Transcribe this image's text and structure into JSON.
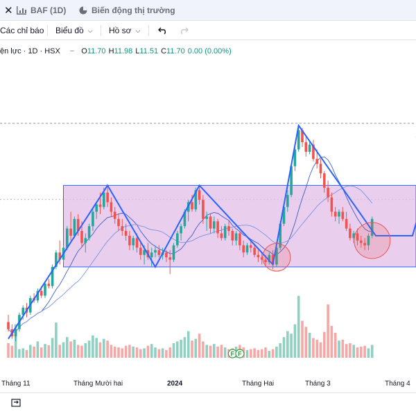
{
  "tabs": {
    "close_glyph": "✕",
    "tab1_label": "BAF (1D)",
    "tab2_label": "Biến động thị trường"
  },
  "toolbar": {
    "indicators_label": "Các chỉ báo",
    "charts_label": "Biểu đồ",
    "profile_label": "Hồ sơ"
  },
  "legend": {
    "symbol": "ện lực · 1D · HSX",
    "open_key": "O",
    "open_value": "11.70",
    "high_key": "H",
    "high_value": "11.98",
    "low_key": "L",
    "low_value": "11.51",
    "close_key": "C",
    "close_value": "11.70",
    "change": "0.00 (0.00%)"
  },
  "xaxis": {
    "labels": [
      "Tháng 11",
      "Tháng Mười hai",
      "2024",
      "Tháng Hai",
      "Tháng 3",
      "Tháng 4"
    ]
  },
  "markers": {
    "f_label": "F"
  },
  "colors": {
    "up": "#26a69a",
    "down": "#ef5350",
    "zigzag": "#2962ff",
    "box_fill": "#e1bee7",
    "box_border": "#2962ff",
    "ma_line": "#5b7bd5"
  },
  "chart_data": {
    "type": "candlestick",
    "x_labels": [
      "Tháng 11",
      "Tháng Mười hai",
      "2024",
      "Tháng Hai",
      "Tháng 3",
      "Tháng 4"
    ],
    "last_ohlc": {
      "open": 11.7,
      "high": 11.98,
      "low": 11.51,
      "close": 11.7,
      "change": 0.0,
      "change_pct": 0.0
    },
    "zigzag": [
      {
        "t": 0,
        "p": 4.5
      },
      {
        "t": 27,
        "p": 10.9
      },
      {
        "t": 40,
        "p": 7.5
      },
      {
        "t": 52,
        "p": 10.9
      },
      {
        "t": 72,
        "p": 7.6
      },
      {
        "t": 79,
        "p": 13.4
      },
      {
        "t": 100,
        "p": 8.8
      },
      {
        "t": 110,
        "p": 8.8
      },
      {
        "t": 118,
        "p": 13.2
      }
    ],
    "range_box": {
      "t_start": 15,
      "t_end": 118,
      "p_low": 7.5,
      "p_high": 10.9
    },
    "candles": [
      {
        "o": 5.2,
        "h": 5.5,
        "l": 4.8,
        "c": 4.9
      },
      {
        "o": 4.9,
        "h": 5.1,
        "l": 4.5,
        "c": 4.6
      },
      {
        "o": 4.6,
        "h": 5.0,
        "l": 4.4,
        "c": 4.9
      },
      {
        "o": 4.9,
        "h": 5.6,
        "l": 4.8,
        "c": 5.5
      },
      {
        "o": 5.5,
        "h": 5.9,
        "l": 5.3,
        "c": 5.8
      },
      {
        "o": 5.8,
        "h": 6.0,
        "l": 5.4,
        "c": 5.6
      },
      {
        "o": 5.6,
        "h": 6.3,
        "l": 5.5,
        "c": 6.2
      },
      {
        "o": 6.2,
        "h": 6.4,
        "l": 6.0,
        "c": 6.1
      },
      {
        "o": 6.1,
        "h": 6.6,
        "l": 6.0,
        "c": 6.5
      },
      {
        "o": 6.5,
        "h": 6.7,
        "l": 6.2,
        "c": 6.3
      },
      {
        "o": 6.3,
        "h": 6.9,
        "l": 6.2,
        "c": 6.8
      },
      {
        "o": 6.8,
        "h": 7.0,
        "l": 6.6,
        "c": 6.7
      },
      {
        "o": 6.7,
        "h": 7.6,
        "l": 6.6,
        "c": 7.5
      },
      {
        "o": 7.5,
        "h": 8.2,
        "l": 7.4,
        "c": 8.1
      },
      {
        "o": 8.1,
        "h": 8.6,
        "l": 7.6,
        "c": 7.8
      },
      {
        "o": 7.8,
        "h": 8.4,
        "l": 7.7,
        "c": 8.3
      },
      {
        "o": 8.3,
        "h": 9.2,
        "l": 8.2,
        "c": 9.1
      },
      {
        "o": 9.1,
        "h": 9.8,
        "l": 8.6,
        "c": 8.8
      },
      {
        "o": 8.8,
        "h": 9.6,
        "l": 8.7,
        "c": 9.5
      },
      {
        "o": 9.5,
        "h": 9.7,
        "l": 8.8,
        "c": 9.0
      },
      {
        "o": 9.0,
        "h": 9.4,
        "l": 8.3,
        "c": 8.5
      },
      {
        "o": 8.5,
        "h": 8.9,
        "l": 8.1,
        "c": 8.7
      },
      {
        "o": 8.7,
        "h": 9.3,
        "l": 8.6,
        "c": 9.2
      },
      {
        "o": 9.2,
        "h": 9.9,
        "l": 9.0,
        "c": 9.8
      },
      {
        "o": 9.8,
        "h": 10.2,
        "l": 9.5,
        "c": 10.1
      },
      {
        "o": 10.1,
        "h": 10.6,
        "l": 9.7,
        "c": 10.0
      },
      {
        "o": 10.0,
        "h": 10.8,
        "l": 9.9,
        "c": 10.6
      },
      {
        "o": 10.6,
        "h": 10.9,
        "l": 10.0,
        "c": 10.2
      },
      {
        "o": 10.2,
        "h": 10.4,
        "l": 9.6,
        "c": 9.8
      },
      {
        "o": 9.8,
        "h": 10.0,
        "l": 9.3,
        "c": 9.5
      },
      {
        "o": 9.5,
        "h": 9.7,
        "l": 9.0,
        "c": 9.2
      },
      {
        "o": 9.2,
        "h": 9.5,
        "l": 8.8,
        "c": 9.0
      },
      {
        "o": 9.0,
        "h": 9.3,
        "l": 8.6,
        "c": 8.8
      },
      {
        "o": 8.8,
        "h": 9.0,
        "l": 8.2,
        "c": 8.4
      },
      {
        "o": 8.4,
        "h": 8.8,
        "l": 8.2,
        "c": 8.7
      },
      {
        "o": 8.7,
        "h": 8.9,
        "l": 8.1,
        "c": 8.3
      },
      {
        "o": 8.3,
        "h": 8.5,
        "l": 7.8,
        "c": 8.0
      },
      {
        "o": 8.0,
        "h": 8.4,
        "l": 7.6,
        "c": 8.2
      },
      {
        "o": 8.2,
        "h": 8.5,
        "l": 7.8,
        "c": 7.9
      },
      {
        "o": 7.9,
        "h": 8.3,
        "l": 7.5,
        "c": 8.1
      },
      {
        "o": 8.1,
        "h": 8.4,
        "l": 7.9,
        "c": 8.2
      },
      {
        "o": 8.2,
        "h": 8.4,
        "l": 7.9,
        "c": 8.0
      },
      {
        "o": 8.0,
        "h": 8.3,
        "l": 7.8,
        "c": 8.1
      },
      {
        "o": 8.1,
        "h": 8.2,
        "l": 7.7,
        "c": 7.9
      },
      {
        "o": 7.9,
        "h": 8.2,
        "l": 7.2,
        "c": 7.8
      },
      {
        "o": 7.8,
        "h": 8.5,
        "l": 7.7,
        "c": 8.4
      },
      {
        "o": 8.4,
        "h": 9.0,
        "l": 8.3,
        "c": 8.9
      },
      {
        "o": 8.9,
        "h": 9.3,
        "l": 8.6,
        "c": 9.2
      },
      {
        "o": 9.2,
        "h": 9.9,
        "l": 9.1,
        "c": 9.8
      },
      {
        "o": 9.8,
        "h": 10.3,
        "l": 9.4,
        "c": 10.2
      },
      {
        "o": 10.2,
        "h": 10.5,
        "l": 9.8,
        "c": 9.9
      },
      {
        "o": 9.9,
        "h": 10.8,
        "l": 9.8,
        "c": 10.7
      },
      {
        "o": 10.7,
        "h": 10.9,
        "l": 10.1,
        "c": 10.3
      },
      {
        "o": 10.3,
        "h": 10.5,
        "l": 9.3,
        "c": 9.5
      },
      {
        "o": 9.5,
        "h": 9.8,
        "l": 9.0,
        "c": 9.6
      },
      {
        "o": 9.6,
        "h": 9.7,
        "l": 8.9,
        "c": 9.1
      },
      {
        "o": 9.1,
        "h": 9.6,
        "l": 8.9,
        "c": 9.4
      },
      {
        "o": 9.4,
        "h": 9.5,
        "l": 8.7,
        "c": 8.9
      },
      {
        "o": 8.9,
        "h": 9.2,
        "l": 8.6,
        "c": 8.7
      },
      {
        "o": 8.7,
        "h": 9.3,
        "l": 8.6,
        "c": 9.2
      },
      {
        "o": 9.2,
        "h": 9.4,
        "l": 8.8,
        "c": 9.0
      },
      {
        "o": 9.0,
        "h": 9.1,
        "l": 8.4,
        "c": 8.6
      },
      {
        "o": 8.6,
        "h": 9.0,
        "l": 8.4,
        "c": 8.9
      },
      {
        "o": 8.9,
        "h": 9.0,
        "l": 8.2,
        "c": 8.4
      },
      {
        "o": 8.4,
        "h": 8.6,
        "l": 7.9,
        "c": 8.1
      },
      {
        "o": 8.1,
        "h": 8.5,
        "l": 8.0,
        "c": 8.4
      },
      {
        "o": 8.4,
        "h": 8.6,
        "l": 8.1,
        "c": 8.3
      },
      {
        "o": 8.3,
        "h": 8.4,
        "l": 7.9,
        "c": 8.0
      },
      {
        "o": 8.0,
        "h": 8.2,
        "l": 7.7,
        "c": 7.9
      },
      {
        "o": 7.9,
        "h": 8.1,
        "l": 7.6,
        "c": 7.8
      },
      {
        "o": 7.8,
        "h": 8.0,
        "l": 7.5,
        "c": 7.7
      },
      {
        "o": 7.7,
        "h": 8.1,
        "l": 7.6,
        "c": 8.0
      },
      {
        "o": 8.0,
        "h": 8.2,
        "l": 7.4,
        "c": 7.6
      },
      {
        "o": 7.6,
        "h": 8.4,
        "l": 7.5,
        "c": 8.3
      },
      {
        "o": 8.3,
        "h": 9.4,
        "l": 8.2,
        "c": 9.3
      },
      {
        "o": 9.3,
        "h": 10.1,
        "l": 9.2,
        "c": 10.0
      },
      {
        "o": 10.0,
        "h": 10.7,
        "l": 9.8,
        "c": 10.5
      },
      {
        "o": 10.5,
        "h": 11.8,
        "l": 10.4,
        "c": 11.7
      },
      {
        "o": 11.7,
        "h": 12.6,
        "l": 11.5,
        "c": 12.4
      },
      {
        "o": 12.4,
        "h": 13.4,
        "l": 12.3,
        "c": 13.2
      },
      {
        "o": 13.2,
        "h": 13.3,
        "l": 12.5,
        "c": 12.7
      },
      {
        "o": 12.7,
        "h": 13.0,
        "l": 12.1,
        "c": 12.3
      },
      {
        "o": 12.3,
        "h": 12.7,
        "l": 12.2,
        "c": 12.6
      },
      {
        "o": 12.6,
        "h": 12.8,
        "l": 11.9,
        "c": 12.0
      },
      {
        "o": 12.0,
        "h": 12.4,
        "l": 11.6,
        "c": 11.8
      },
      {
        "o": 11.8,
        "h": 12.0,
        "l": 11.2,
        "c": 11.4
      },
      {
        "o": 11.4,
        "h": 11.5,
        "l": 10.6,
        "c": 10.8
      },
      {
        "o": 10.8,
        "h": 11.1,
        "l": 10.2,
        "c": 10.4
      },
      {
        "o": 10.4,
        "h": 10.6,
        "l": 9.6,
        "c": 9.8
      },
      {
        "o": 9.8,
        "h": 10.0,
        "l": 9.4,
        "c": 9.6
      },
      {
        "o": 9.6,
        "h": 9.9,
        "l": 9.3,
        "c": 9.8
      },
      {
        "o": 9.8,
        "h": 10.0,
        "l": 9.4,
        "c": 9.5
      },
      {
        "o": 9.5,
        "h": 9.8,
        "l": 9.0,
        "c": 9.1
      },
      {
        "o": 9.1,
        "h": 9.3,
        "l": 8.6,
        "c": 8.7
      },
      {
        "o": 8.7,
        "h": 9.0,
        "l": 8.5,
        "c": 8.9
      },
      {
        "o": 8.9,
        "h": 9.1,
        "l": 8.4,
        "c": 8.6
      },
      {
        "o": 8.6,
        "h": 8.8,
        "l": 8.3,
        "c": 8.5
      },
      {
        "o": 8.5,
        "h": 8.7,
        "l": 8.2,
        "c": 8.4
      },
      {
        "o": 8.4,
        "h": 8.9,
        "l": 8.2,
        "c": 8.8
      },
      {
        "o": 8.8,
        "h": 9.6,
        "l": 8.7,
        "c": 9.5
      }
    ],
    "volumes": [
      34,
      28,
      78,
      20,
      22,
      18,
      30,
      26,
      38,
      24,
      32,
      29,
      46,
      82,
      30,
      36,
      48,
      38,
      42,
      30,
      28,
      34,
      40,
      52,
      46,
      36,
      44,
      40,
      30,
      26,
      24,
      22,
      28,
      30,
      26,
      24,
      20,
      22,
      28,
      32,
      24,
      20,
      22,
      18,
      24,
      34,
      38,
      42,
      48,
      62,
      40,
      44,
      56,
      38,
      30,
      28,
      32,
      26,
      30,
      24,
      20,
      22,
      26,
      30,
      24,
      18,
      20,
      22,
      18,
      20,
      24,
      16,
      20,
      26,
      34,
      48,
      62,
      56,
      78,
      144,
      86,
      72,
      58,
      46,
      42,
      36,
      60,
      124,
      74,
      58,
      40,
      42,
      32,
      34,
      30,
      24,
      26,
      28,
      22,
      30,
      36,
      48
    ]
  }
}
